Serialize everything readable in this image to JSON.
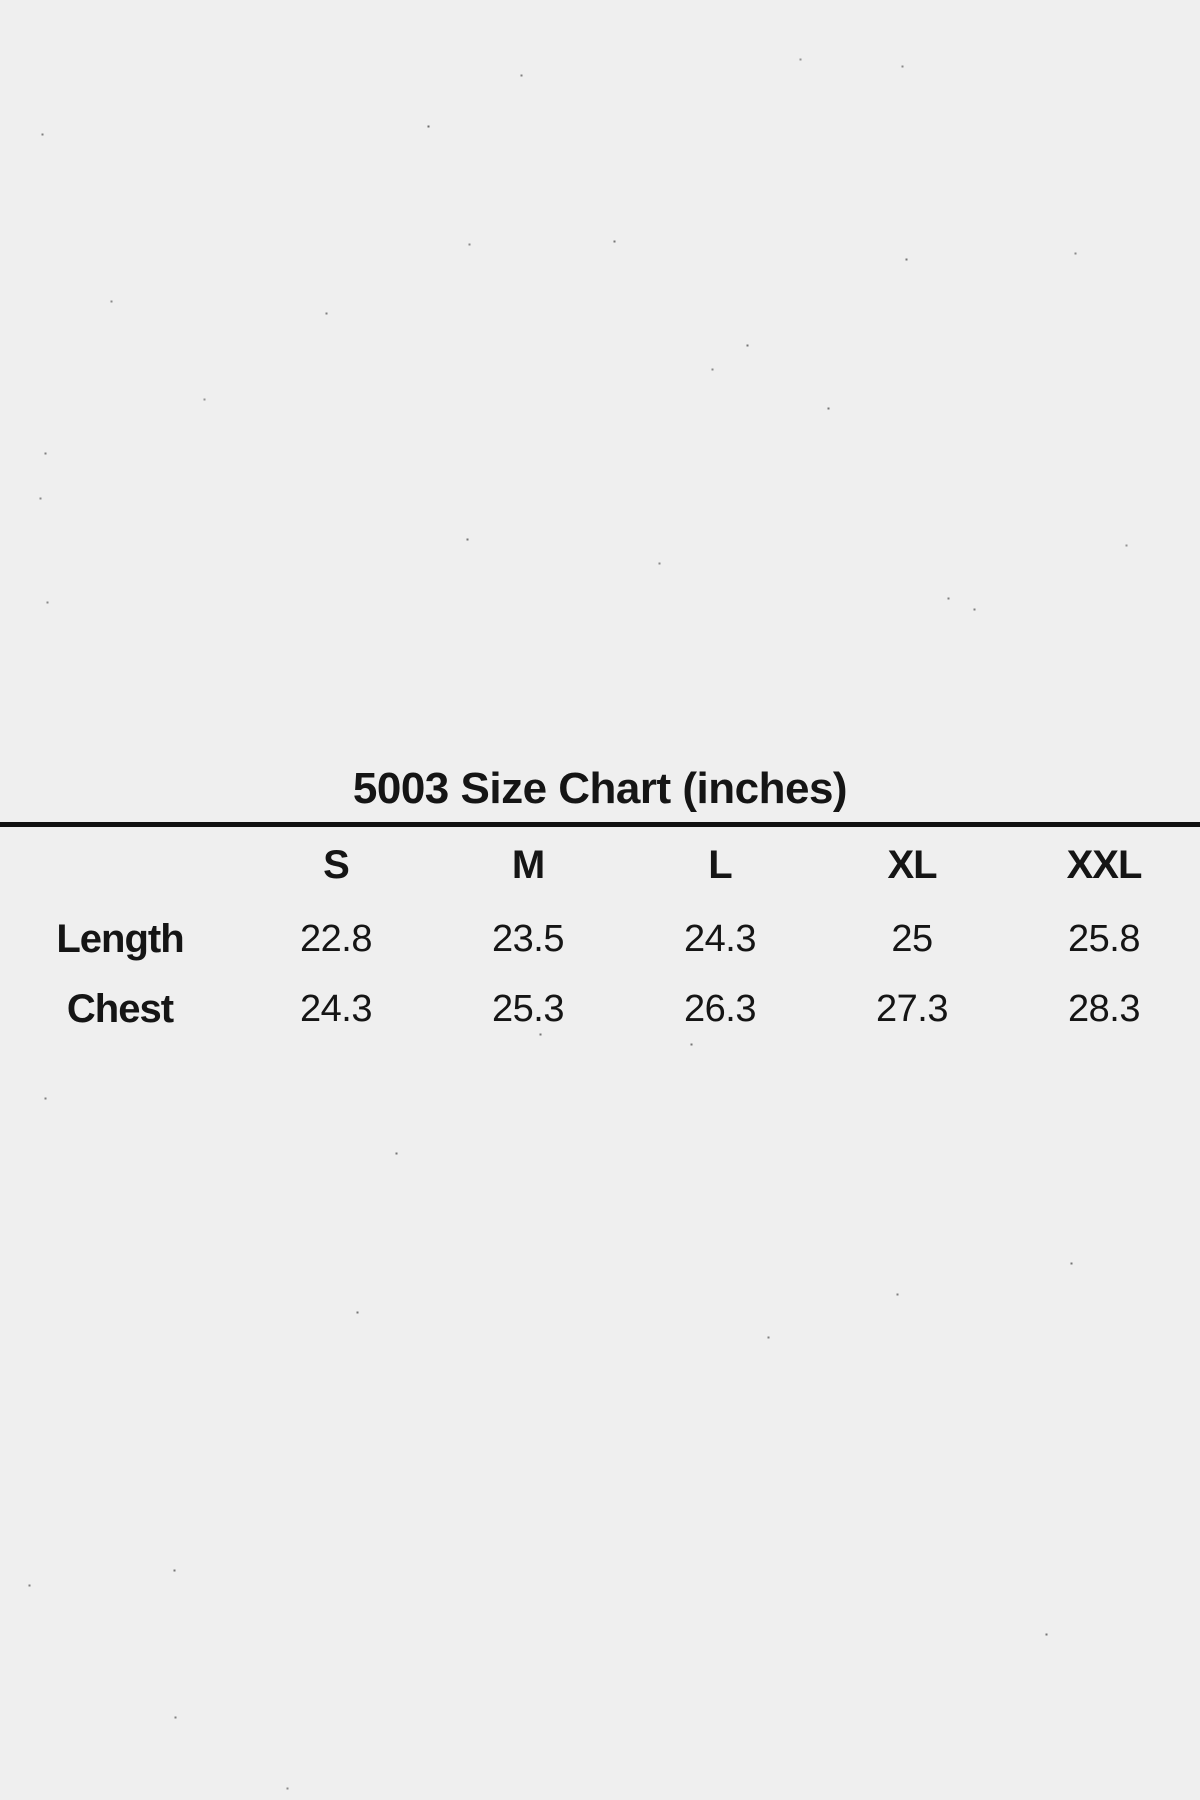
{
  "page": {
    "background": "#efefef",
    "text_color": "#151515",
    "rule_color": "#111111"
  },
  "chart_data": {
    "type": "table",
    "title": "5003 Size Chart (inches)",
    "units": "inches",
    "columns": [
      "S",
      "M",
      "L",
      "XL",
      "XXL"
    ],
    "rows": [
      {
        "label": "Length",
        "values": [
          "22.8",
          "23.5",
          "24.3",
          "25",
          "25.8"
        ]
      },
      {
        "label": "Chest",
        "values": [
          "24.3",
          "25.3",
          "26.3",
          "27.3",
          "28.3"
        ]
      }
    ]
  }
}
